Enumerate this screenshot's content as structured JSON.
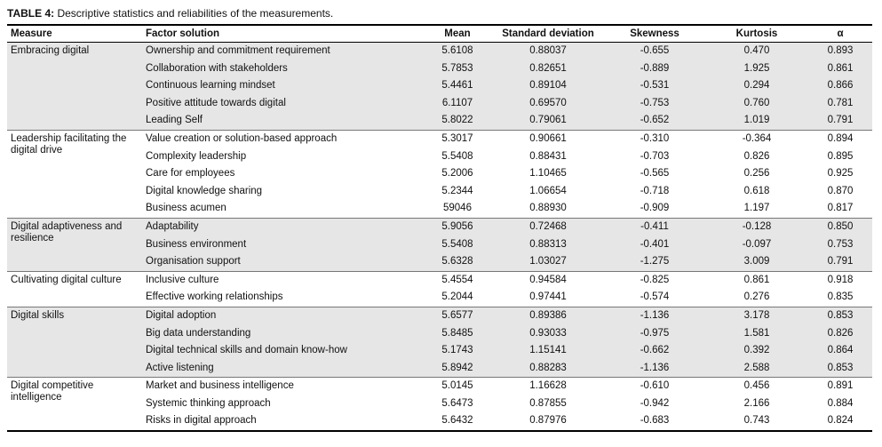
{
  "title": {
    "label": "TABLE 4:",
    "text": "Descriptive statistics and reliabilities of the measurements."
  },
  "table": {
    "header": [
      "Measure",
      "Factor solution",
      "Mean",
      "Standard deviation",
      "Skewness",
      "Kurtosis",
      "α"
    ],
    "groups": [
      {
        "measure": "Embracing digital",
        "rows": [
          [
            "Ownership and commitment requirement",
            "5.6108",
            "0.88037",
            "-0.655",
            "0.470",
            "0.893"
          ],
          [
            "Collaboration with stakeholders",
            "5.7853",
            "0.82651",
            "-0.889",
            "1.925",
            "0.861"
          ],
          [
            "Continuous learning mindset",
            "5.4461",
            "0.89104",
            "-0.531",
            "0.294",
            "0.866"
          ],
          [
            "Positive attitude towards digital",
            "6.1107",
            "0.69570",
            "-0.753",
            "0.760",
            "0.781"
          ],
          [
            "Leading Self",
            "5.8022",
            "0.79061",
            "-0.652",
            "1.019",
            "0.791"
          ]
        ]
      },
      {
        "measure": "Leadership facilitating the digital drive",
        "rows": [
          [
            "Value creation or solution-based approach",
            "5.3017",
            "0.90661",
            "-0.310",
            "-0.364",
            "0.894"
          ],
          [
            "Complexity leadership",
            "5.5408",
            "0.88431",
            "-0.703",
            "0.826",
            "0.895"
          ],
          [
            "Care for employees",
            "5.2006",
            "1.10465",
            "-0.565",
            "0.256",
            "0.925"
          ],
          [
            "Digital knowledge sharing",
            "5.2344",
            "1.06654",
            "-0.718",
            "0.618",
            "0.870"
          ],
          [
            "Business acumen",
            "59046",
            "0.88930",
            "-0.909",
            "1.197",
            "0.817"
          ]
        ]
      },
      {
        "measure": "Digital adaptiveness and resilience",
        "rows": [
          [
            "Adaptability",
            "5.9056",
            "0.72468",
            "-0.411",
            "-0.128",
            "0.850"
          ],
          [
            "Business environment",
            "5.5408",
            "0.88313",
            "-0.401",
            "-0.097",
            "0.753"
          ],
          [
            "Organisation support",
            "5.6328",
            "1.03027",
            "-1.275",
            "3.009",
            "0.791"
          ]
        ]
      },
      {
        "measure": "Cultivating digital culture",
        "rows": [
          [
            "Inclusive culture",
            "5.4554",
            "0.94584",
            "-0.825",
            "0.861",
            "0.918"
          ],
          [
            "Effective working relationships",
            "5.2044",
            "0.97441",
            "-0.574",
            "0.276",
            "0.835"
          ]
        ]
      },
      {
        "measure": "Digital skills",
        "rows": [
          [
            "Digital adoption",
            "5.6577",
            "0.89386",
            "-1.136",
            "3.178",
            "0.853"
          ],
          [
            "Big data understanding",
            "5.8485",
            "0.93033",
            "-0.975",
            "1.581",
            "0.826"
          ],
          [
            "Digital technical skills and domain know-how",
            "5.1743",
            "1.15141",
            "-0.662",
            "0.392",
            "0.864"
          ],
          [
            "Active listening",
            "5.8942",
            "0.88283",
            "-1.136",
            "2.588",
            "0.853"
          ]
        ]
      },
      {
        "measure": "Digital competitive intelligence",
        "rows": [
          [
            "Market and business intelligence",
            "5.0145",
            "1.16628",
            "-0.610",
            "0.456",
            "0.891"
          ],
          [
            "Systemic thinking approach",
            "5.6473",
            "0.87855",
            "-0.942",
            "2.166",
            "0.884"
          ],
          [
            "Risks in digital approach",
            "5.6432",
            "0.87976",
            "-0.683",
            "0.743",
            "0.824"
          ]
        ]
      }
    ]
  }
}
